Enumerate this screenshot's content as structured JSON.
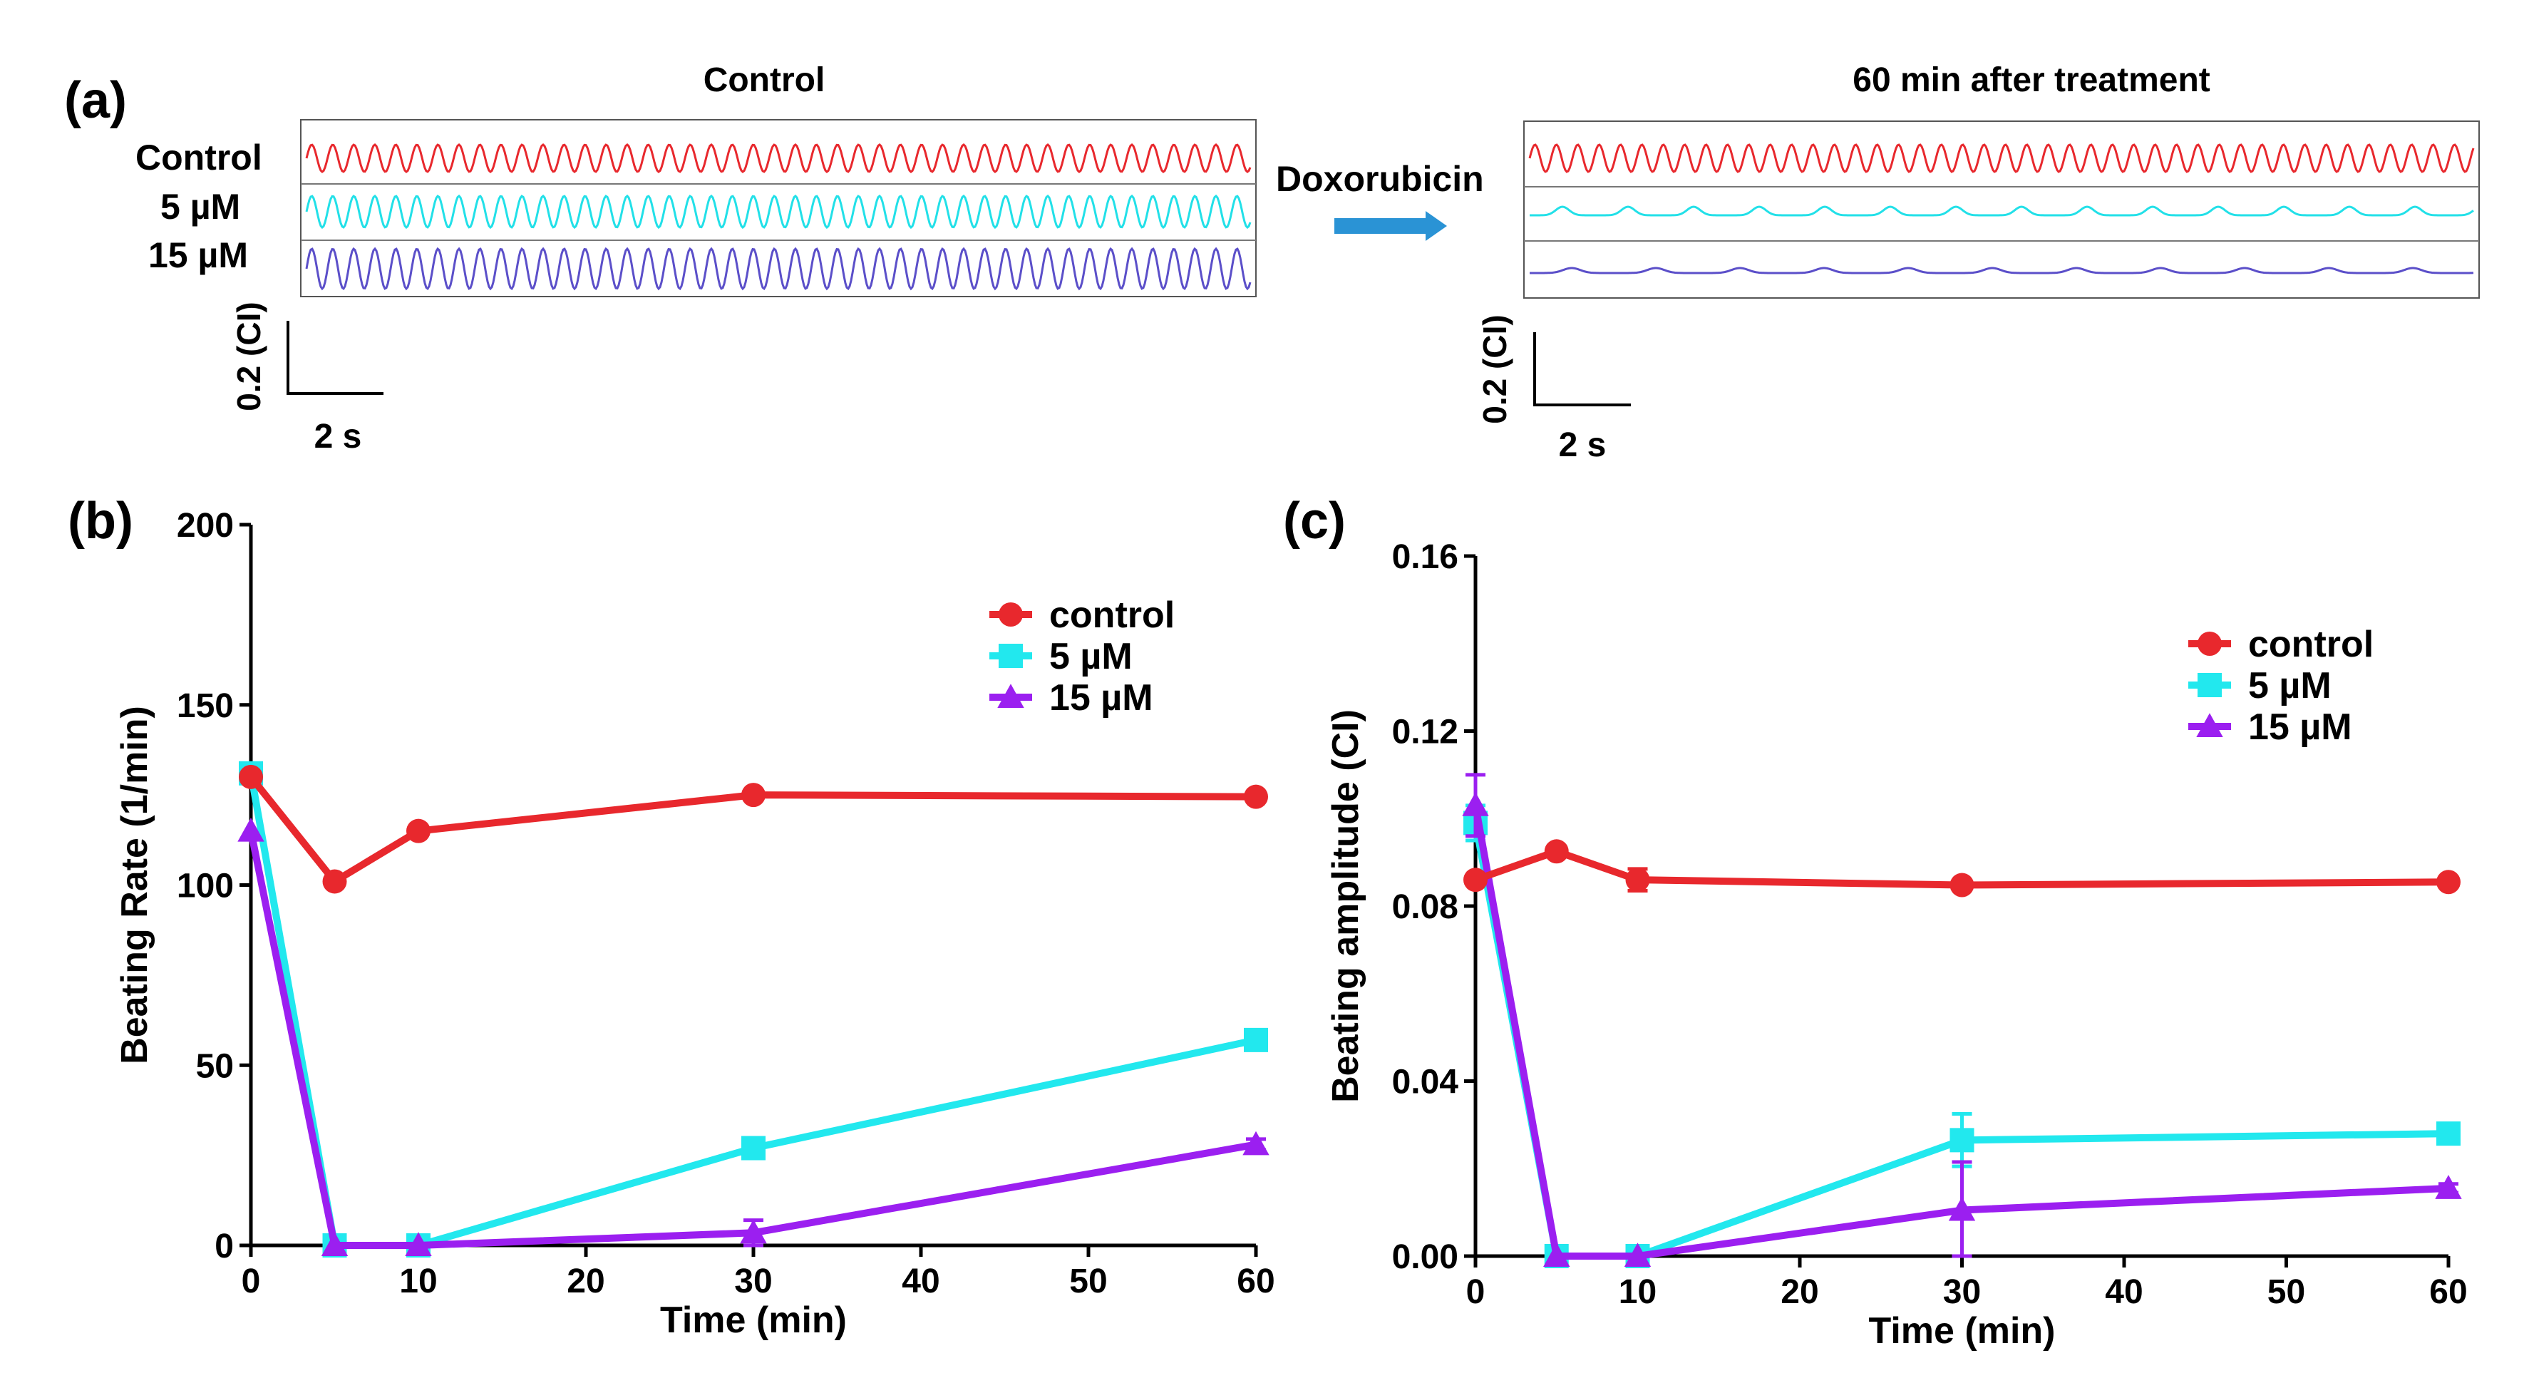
{
  "panel_a": {
    "label": "(a)",
    "left_title": "Control",
    "right_title": "60 min after treatment",
    "row_labels": [
      "Control",
      "5 µM",
      "15 µM"
    ],
    "treatment_label": "Doxorubicin",
    "scalebar_y": "0.2 (CI)",
    "scalebar_x": "2 s",
    "colors": {
      "control": "#e8282d",
      "low": "#22e0e8",
      "high": "#5b4fc9",
      "arrow": "#2a93d5"
    }
  },
  "chart_data": [
    {
      "type": "line",
      "panel_label": "(b)",
      "title": "",
      "xlabel": "Time (min)",
      "ylabel": "Beating Rate (1/min)",
      "xlim": [
        0,
        60
      ],
      "ylim": [
        0,
        200
      ],
      "xticks": [
        0,
        10,
        20,
        30,
        40,
        50,
        60
      ],
      "yticks": [
        0,
        50,
        100,
        150,
        200
      ],
      "x": [
        0,
        5,
        10,
        30,
        60
      ],
      "legend_position": "top-right",
      "series": [
        {
          "name": "control",
          "color": "#e8282d",
          "marker": "circle",
          "values": [
            130,
            101,
            115,
            125,
            124.5
          ],
          "errors": [
            0,
            1,
            1,
            1,
            1
          ]
        },
        {
          "name": "5 µM",
          "color": "#22e8ee",
          "marker": "square",
          "values": [
            131,
            0,
            0,
            27,
            57
          ],
          "errors": [
            0,
            0,
            0,
            1.5,
            1.5
          ]
        },
        {
          "name": "15 µM",
          "color": "#9b1ff0",
          "marker": "triangle",
          "values": [
            115,
            0,
            0,
            3.5,
            28
          ],
          "errors": [
            0,
            0,
            0,
            3.5,
            1.5
          ]
        }
      ]
    },
    {
      "type": "line",
      "panel_label": "(c)",
      "title": "",
      "xlabel": "Time (min)",
      "ylabel": "Beating amplitude (CI)",
      "xlim": [
        0,
        60
      ],
      "ylim": [
        0,
        0.16
      ],
      "xticks": [
        0,
        10,
        20,
        30,
        40,
        50,
        60
      ],
      "yticks": [
        "0.00",
        "0.04",
        "0.08",
        "0.12",
        "0.16"
      ],
      "x": [
        0,
        5,
        10,
        30,
        60
      ],
      "legend_position": "top-right",
      "series": [
        {
          "name": "control",
          "color": "#e8282d",
          "marker": "circle",
          "values": [
            0.086,
            0.0925,
            0.086,
            0.0848,
            0.0855
          ],
          "errors": [
            0,
            0.001,
            0.0025,
            0.001,
            0.001
          ]
        },
        {
          "name": "5 µM",
          "color": "#22e8ee",
          "marker": "square",
          "values": [
            0.099,
            0,
            0,
            0.0265,
            0.028
          ],
          "errors": [
            0.004,
            0,
            0,
            0.006,
            0.002
          ]
        },
        {
          "name": "15 µM",
          "color": "#9b1ff0",
          "marker": "triangle",
          "values": [
            0.103,
            0,
            0,
            0.0105,
            0.0155
          ],
          "errors": [
            0.007,
            0,
            0,
            0.011,
            0.001
          ]
        }
      ]
    }
  ]
}
